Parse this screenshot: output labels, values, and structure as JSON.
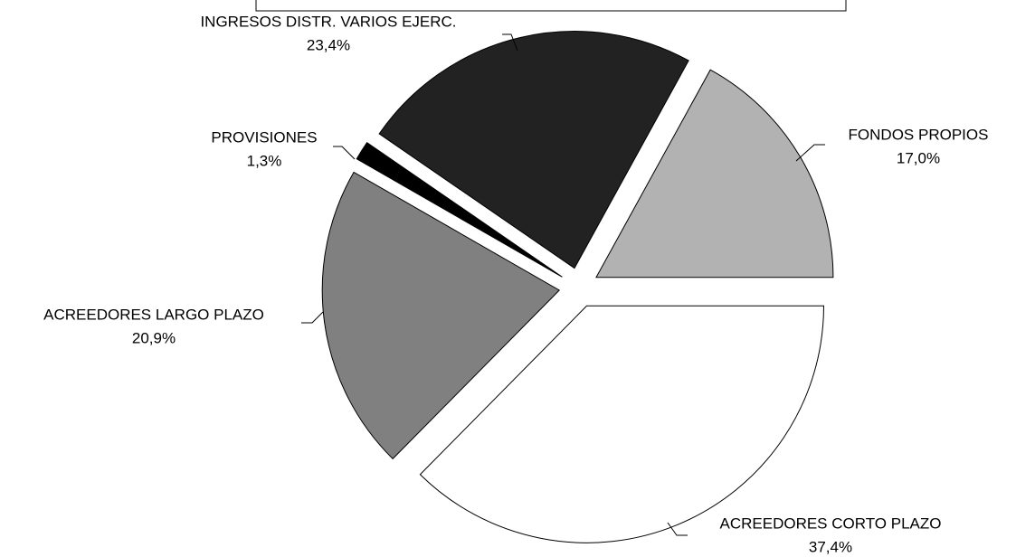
{
  "chart_data": {
    "type": "pie",
    "categories": [
      "FONDOS PROPIOS",
      "ACREEDORES CORTO PLAZO",
      "ACREEDORES LARGO PLAZO",
      "PROVISIONES",
      "INGRESOS DISTR. VARIOS EJERC."
    ],
    "values": [
      17.0,
      37.4,
      20.9,
      1.3,
      23.4
    ],
    "value_labels": [
      "17,0%",
      "37,4%",
      "20,9%",
      "1,3%",
      "23,4%"
    ],
    "colors": [
      "#b2b2b2",
      "#ffffff",
      "#808080",
      "#000000",
      "#222222"
    ],
    "start_angle": 28.8,
    "exploded": true
  }
}
